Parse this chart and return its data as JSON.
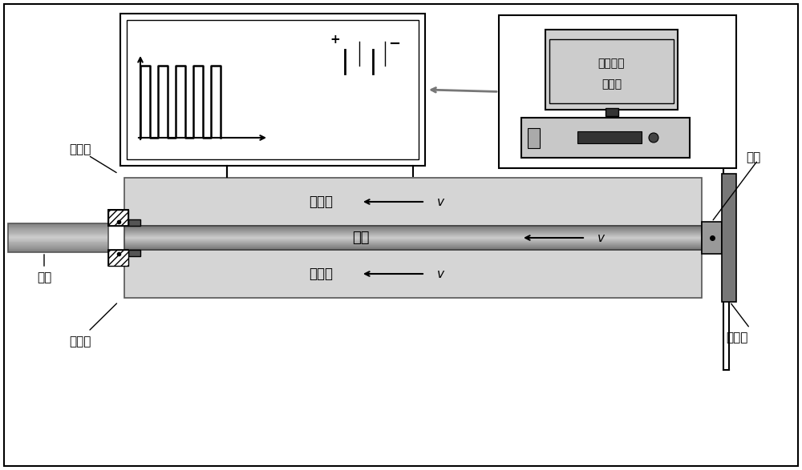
{
  "bg_color": "#ffffff",
  "label_jiuyamo_top": "挤压模",
  "label_jiuyamo_bot": "挤压模",
  "label_jiuyatong_top": "挤压筒",
  "label_jiuyatong_bot": "挤压筒",
  "label_billet": "坯料",
  "label_bar": "棒材",
  "label_plug": "堵头",
  "label_copper": "铜电极",
  "label_power": "可编程脉\n冲电源",
  "velocity_label": "v",
  "outer_rect_color": "#c8c8c8",
  "cylinder_light": "#d8d8d8",
  "cylinder_dark": "#909090",
  "billet_light": "#b0b0b0",
  "billet_dark": "#606060",
  "die_color": "#505050",
  "die_fill": "#888888"
}
